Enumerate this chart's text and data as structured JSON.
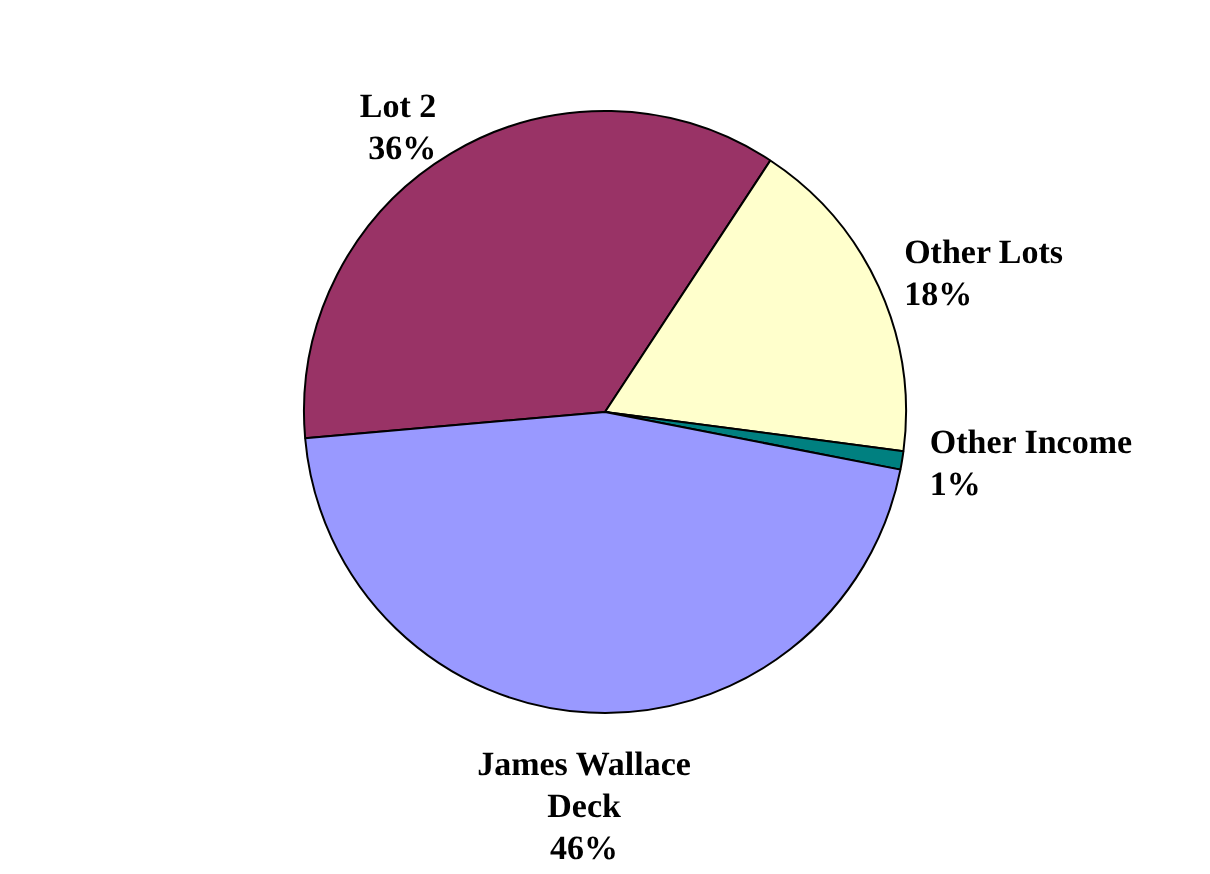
{
  "chart_data": {
    "type": "pie",
    "categories": [
      "Lot 2",
      "Other Lots",
      "Other Income",
      "James Wallace Deck"
    ],
    "values": [
      36,
      18,
      1,
      46
    ],
    "value_labels": [
      "36%",
      "18%",
      "1%",
      "46%"
    ],
    "colors": [
      "#993366",
      "#ffffcc",
      "#008080",
      "#9999ff"
    ],
    "legend": false
  }
}
